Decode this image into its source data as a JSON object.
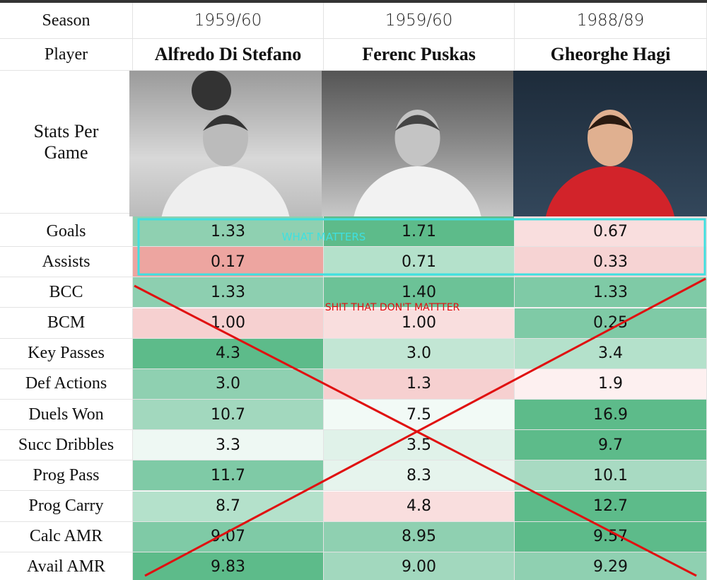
{
  "header": {
    "row_labels": [
      "Season",
      "Player"
    ],
    "stats_label": "Stats Per Game"
  },
  "columns": [
    {
      "season": "1959/60",
      "player": "Alfredo Di Stefano"
    },
    {
      "season": "1959/60",
      "player": "Ferenc Puskas"
    },
    {
      "season": "1988/89",
      "player": "Gheorghe Hagi"
    }
  ],
  "stats": [
    {
      "label": "Goals",
      "values": [
        "1.33",
        "1.71",
        "0.67"
      ],
      "colors": [
        "#8fd0b1",
        "#5dbb8a",
        "#f9dede"
      ]
    },
    {
      "label": "Assists",
      "values": [
        "0.17",
        "0.71",
        "0.33"
      ],
      "colors": [
        "#eda5a0",
        "#b4e1cb",
        "#f6d3d3"
      ]
    },
    {
      "label": "BCC",
      "values": [
        "1.33",
        "1.40",
        "1.33"
      ],
      "colors": [
        "#8dcfb0",
        "#6cc297",
        "#7fcaa6"
      ]
    },
    {
      "label": "BCM",
      "values": [
        "1.00",
        "1.00",
        "0.25"
      ],
      "colors": [
        "#f6d0d0",
        "#f9dede",
        "#7fcaa6"
      ]
    },
    {
      "label": "Key Passes",
      "values": [
        "4.3",
        "3.0",
        "3.4"
      ],
      "colors": [
        "#5dbb8a",
        "#c2e6d4",
        "#b4e1cb"
      ]
    },
    {
      "label": "Def Actions",
      "values": [
        "3.0",
        "1.3",
        "1.9"
      ],
      "colors": [
        "#8fd0b1",
        "#f6d0d0",
        "#fdf0f0"
      ]
    },
    {
      "label": "Duels Won",
      "values": [
        "10.7",
        "7.5",
        "16.9"
      ],
      "colors": [
        "#a2d8be",
        "#f2faf6",
        "#5dbb8a"
      ]
    },
    {
      "label": "Succ Dribbles",
      "values": [
        "3.3",
        "3.5",
        "9.7"
      ],
      "colors": [
        "#eef8f3",
        "#e0f2e9",
        "#5dbb8a"
      ]
    },
    {
      "label": "Prog Pass",
      "values": [
        "11.7",
        "8.3",
        "10.1"
      ],
      "colors": [
        "#7fcaa6",
        "#e6f4ed",
        "#a8dac2"
      ]
    },
    {
      "label": "Prog Carry",
      "values": [
        "8.7",
        "4.8",
        "12.7"
      ],
      "colors": [
        "#b4e1cb",
        "#f9dede",
        "#5dbb8a"
      ]
    },
    {
      "label": "Calc AMR",
      "values": [
        "9.07",
        "8.95",
        "9.57"
      ],
      "colors": [
        "#7fcaa6",
        "#8fd0b1",
        "#5dbb8a"
      ]
    },
    {
      "label": "Avail AMR",
      "values": [
        "9.83",
        "9.00",
        "9.29"
      ],
      "colors": [
        "#5dbb8a",
        "#a2d8be",
        "#8fd0b1"
      ]
    }
  ],
  "annotations": {
    "highlight": "WHAT MATTERS",
    "strike": "SHIT THAT DON'T MATTTER"
  }
}
